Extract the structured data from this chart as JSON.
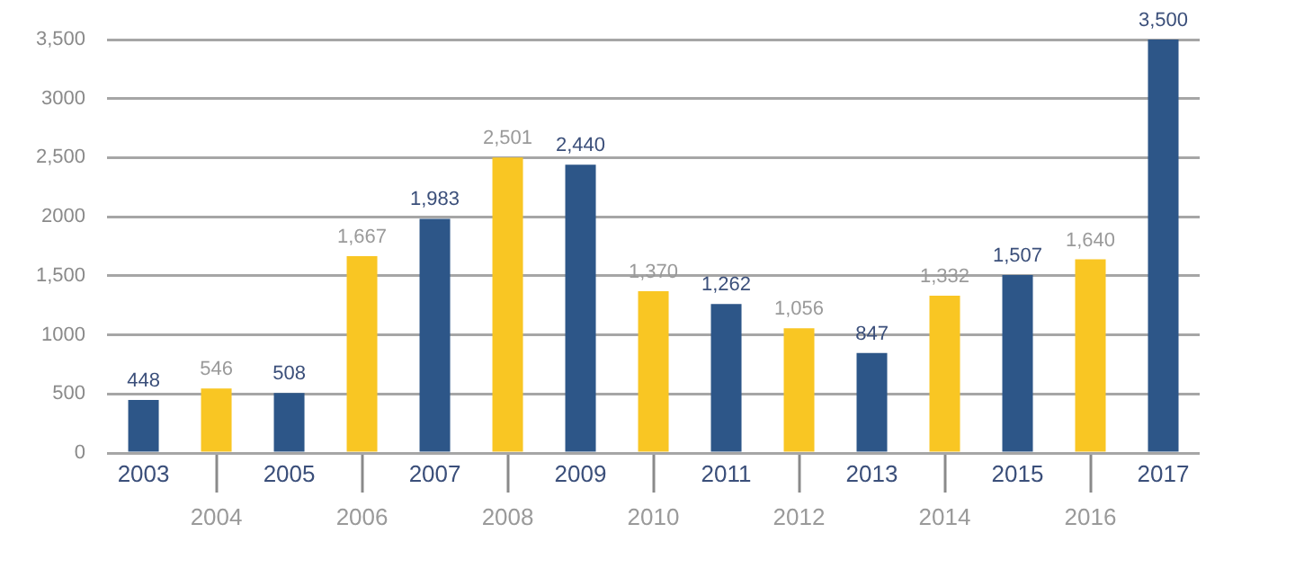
{
  "chart_data": {
    "type": "bar",
    "categories": [
      "2003",
      "2004",
      "2005",
      "2006",
      "2007",
      "2008",
      "2009",
      "2010",
      "2011",
      "2012",
      "2013",
      "2014",
      "2015",
      "2016",
      "2017"
    ],
    "values": [
      448,
      546,
      508,
      1667,
      1983,
      2501,
      2440,
      1370,
      1262,
      1056,
      847,
      1332,
      1507,
      1640,
      3500
    ],
    "colors": [
      "#2d5688",
      "#f9c623",
      "#2d5688",
      "#f9c623",
      "#2d5688",
      "#f9c623",
      "#2d5688",
      "#f9c623",
      "#2d5688",
      "#f9c623",
      "#2d5688",
      "#f9c623",
      "#2d5688",
      "#f9c623",
      "#2d5688"
    ],
    "value_labels": [
      "448",
      "546",
      "508",
      "1,667",
      "1,983",
      "2,501",
      "2,440",
      "1,370",
      "1,262",
      "1,056",
      "847",
      "1,332",
      "1,507",
      "1,640",
      "3,500"
    ],
    "ylim": [
      0,
      3500
    ],
    "yticks": [
      0,
      500,
      {
        "value": 1000,
        "label": "1000"
      },
      {
        "value": 1500,
        "label": "1,500"
      },
      {
        "value": 2000,
        "label": "2000"
      },
      {
        "value": 2500,
        "label": "2,500"
      },
      {
        "value": 3000,
        "label": "3000"
      },
      {
        "value": 3500,
        "label": "3,500"
      }
    ],
    "grid": "y",
    "legend": false
  }
}
